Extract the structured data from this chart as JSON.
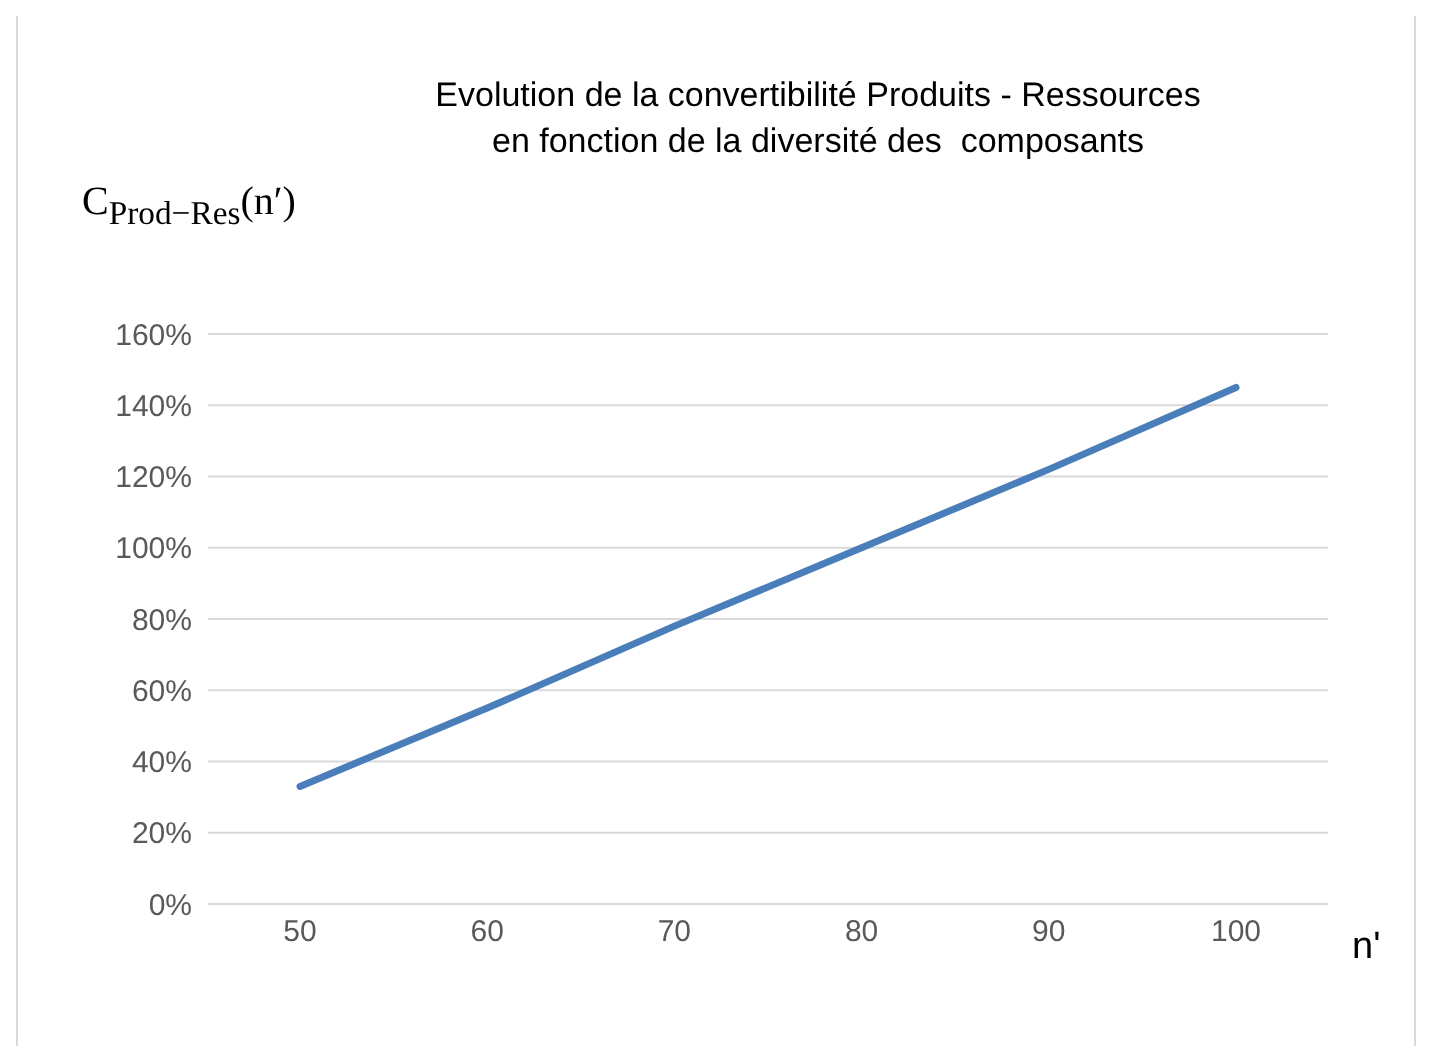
{
  "chart_data": {
    "type": "line",
    "title": "Evolution de la convertibilité Produits - Ressources\nen fonction de la diversité des  composants",
    "ylabel": "C$_{Prod−Res}$(n′)",
    "xlabel": "n'",
    "categories": [
      "50",
      "60",
      "70",
      "80",
      "90",
      "100"
    ],
    "series": [
      {
        "color": "#4a7ebb",
        "values": [
          33,
          55,
          78,
          100,
          122,
          145
        ]
      }
    ],
    "ylim": [
      0,
      160
    ],
    "yticks": [
      {
        "value": 0,
        "label": "0%"
      },
      {
        "value": 20,
        "label": "20%"
      },
      {
        "value": 40,
        "label": "40%"
      },
      {
        "value": 60,
        "label": "60%"
      },
      {
        "value": 80,
        "label": "80%"
      },
      {
        "value": 100,
        "label": "100%"
      },
      {
        "value": 120,
        "label": "120%"
      },
      {
        "value": 140,
        "label": "140%"
      },
      {
        "value": 160,
        "label": "160%"
      }
    ],
    "grid": "y",
    "legend": false,
    "marker": "none",
    "line_style": "solid"
  }
}
